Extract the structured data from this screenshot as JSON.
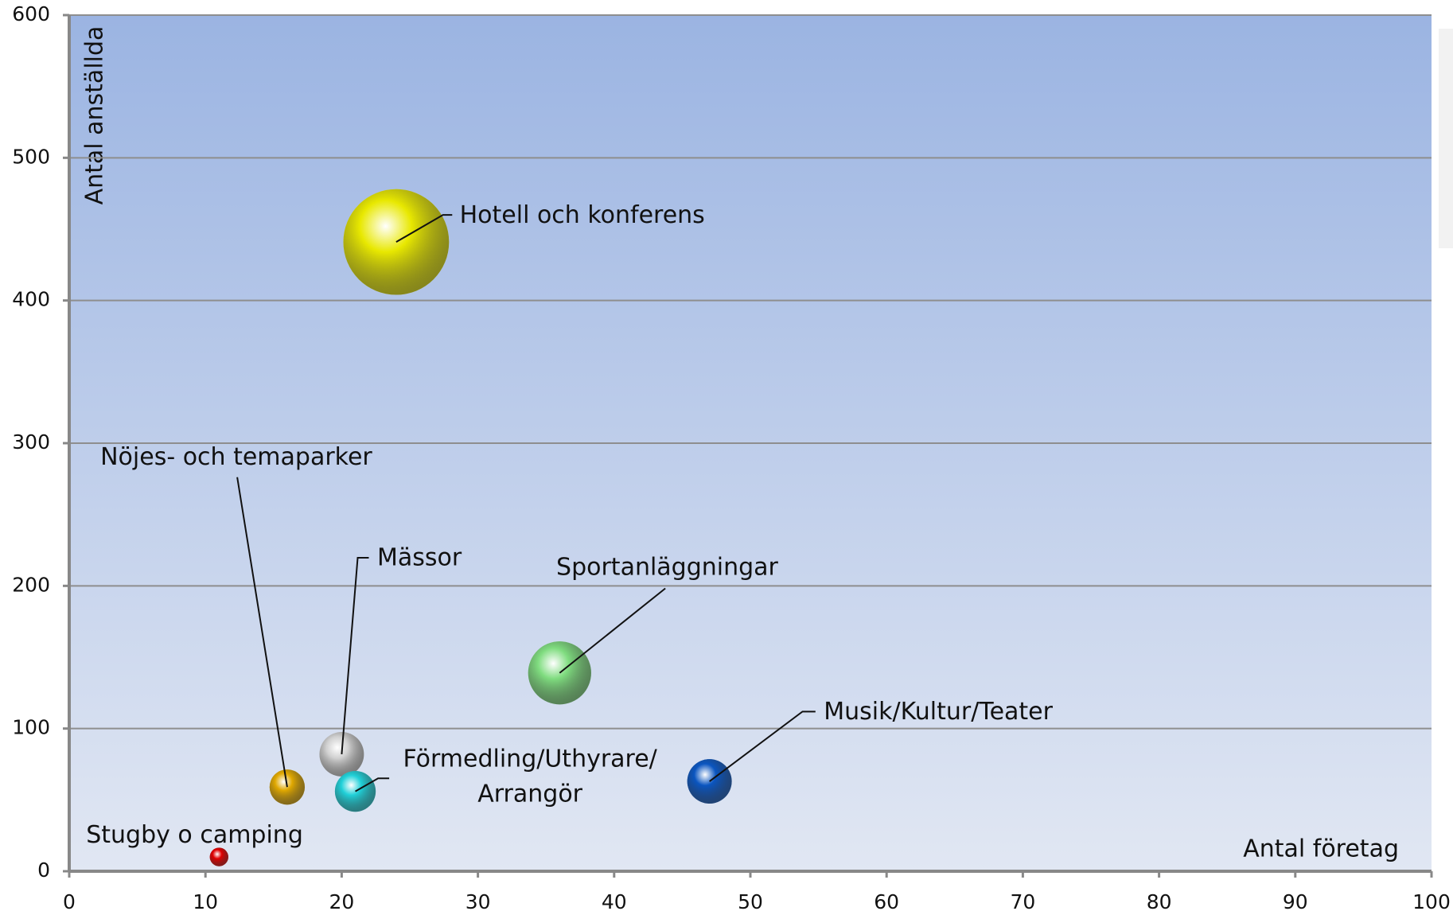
{
  "chart_data": {
    "type": "bubble",
    "x_label": "Antal företag",
    "y_label": "Antal anställda",
    "xlim": [
      0,
      100
    ],
    "xticks": [
      0,
      10,
      20,
      30,
      40,
      50,
      60,
      70,
      80,
      90,
      100
    ],
    "ylim": [
      0,
      600
    ],
    "yticks": [
      0,
      100,
      200,
      300,
      400,
      500,
      600
    ],
    "grid": true,
    "labels": [
      "Hotell och konferens",
      "Sportanläggningar",
      "Musik/Kultur/Teater",
      "Mässor",
      [
        "Förmedling/Uthyrare/",
        "Arrangör"
      ],
      "Nöjes- och temaparker",
      "Stugby o camping"
    ],
    "x": [
      24,
      36,
      47,
      20,
      21,
      16,
      11
    ],
    "y": [
      441,
      139,
      63,
      82,
      56,
      59,
      10
    ],
    "sizes": [
      3250,
      1156,
      576,
      576,
      484,
      361,
      100
    ],
    "colors": [
      "#e8e800",
      "#7fdc7f",
      "#0a55c0",
      "#d0d0d0",
      "#20d0d8",
      "#e0a800",
      "#e00000"
    ]
  }
}
